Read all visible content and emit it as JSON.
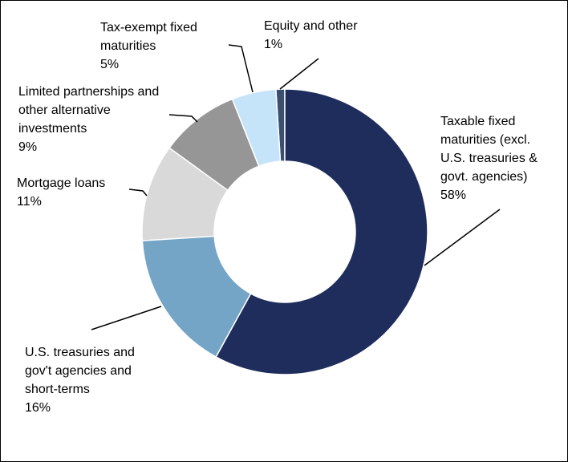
{
  "chart_data": {
    "type": "donut",
    "categories": [
      "Taxable fixed maturities (excl. U.S. treasuries & govt. agencies)",
      "U.S. treasuries and gov't agencies and short-terms",
      "Mortgage loans",
      "Limited partnerships and other alternative investments",
      "Tax-exempt fixed maturities",
      "Equity and other"
    ],
    "values": [
      58,
      16,
      11,
      9,
      5,
      1
    ],
    "value_labels": [
      "58%",
      "16%",
      "11%",
      "9%",
      "5%",
      "1%"
    ],
    "colors": [
      "#1f2d5c",
      "#74a5c6",
      "#d9d9d9",
      "#969696",
      "#c6e4f9",
      "#3b4f70"
    ]
  }
}
